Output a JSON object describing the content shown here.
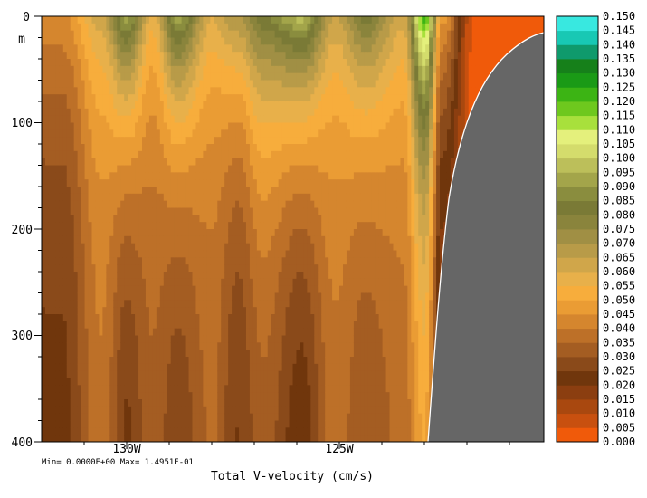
{
  "chart_data": {
    "type": "heatmap",
    "title": "Total V-velocity (cm/s)",
    "stats": "Min= 0.0000E+00  Max= 1.4951E-01",
    "ylabel_unit": "m",
    "yticks": [
      "0",
      "100",
      "200",
      "300",
      "400"
    ],
    "ylim": [
      0,
      400
    ],
    "y_inverted": true,
    "xticks": [
      "130W",
      "125W"
    ],
    "xtick_positions_deg_w": [
      130,
      125
    ],
    "xlim_deg_w": [
      132.1,
      120.3
    ],
    "colorbar": {
      "min": 0.0,
      "max": 0.15,
      "step": 0.005,
      "labels": [
        "0.000",
        "0.005",
        "0.010",
        "0.015",
        "0.020",
        "0.025",
        "0.030",
        "0.035",
        "0.040",
        "0.045",
        "0.050",
        "0.055",
        "0.060",
        "0.065",
        "0.070",
        "0.075",
        "0.080",
        "0.085",
        "0.090",
        "0.095",
        "0.100",
        "0.105",
        "0.110",
        "0.115",
        "0.120",
        "0.125",
        "0.130",
        "0.135",
        "0.140",
        "0.145",
        "0.150"
      ],
      "colors": [
        "#f05a0a",
        "#c8500f",
        "#a9480f",
        "#8b3e10",
        "#70360c",
        "#8a4a1a",
        "#a45d22",
        "#bd7028",
        "#d5862e",
        "#ea9c34",
        "#f7ad3c",
        "#e8b04a",
        "#d0a64a",
        "#b89b48",
        "#a08f44",
        "#8a843c",
        "#7a7a36",
        "#8a8d3e",
        "#a3a54a",
        "#bcbf5a",
        "#d4dc6c",
        "#e4f07c",
        "#a8e03c",
        "#6ec81e",
        "#3cb414",
        "#1a9a16",
        "#16801a",
        "#0f9a6c",
        "#18c8b4",
        "#38e8e0",
        "#48c8e8"
      ],
      "high_colors": [
        "#48c8e8",
        "#3ca0d8",
        "#2e78c0",
        "#2a50a8",
        "#2e3898",
        "#5a3090",
        "#7a3ca8",
        "#a048b8",
        "#c860c8",
        "#e880d8",
        "#f890c0"
      ]
    },
    "land_color": "#666666",
    "profile_columns": [
      {
        "lon": 131.6,
        "shallow": 0.042,
        "deep": 0.02
      },
      {
        "lon": 130.7,
        "shallow": 0.06,
        "deep": 0.035
      },
      {
        "lon": 130.1,
        "shallow": 0.09,
        "deep": 0.018
      },
      {
        "lon": 129.5,
        "shallow": 0.055,
        "deep": 0.03
      },
      {
        "lon": 128.9,
        "shallow": 0.09,
        "deep": 0.02
      },
      {
        "lon": 128.1,
        "shallow": 0.058,
        "deep": 0.032
      },
      {
        "lon": 127.5,
        "shallow": 0.068,
        "deep": 0.02
      },
      {
        "lon": 126.9,
        "shallow": 0.082,
        "deep": 0.028
      },
      {
        "lon": 126.0,
        "shallow": 0.095,
        "deep": 0.015
      },
      {
        "lon": 125.2,
        "shallow": 0.062,
        "deep": 0.034
      },
      {
        "lon": 124.5,
        "shallow": 0.08,
        "deep": 0.025
      },
      {
        "lon": 123.6,
        "shallow": 0.06,
        "deep": 0.033
      },
      {
        "lon": 123.1,
        "shallow": 0.12,
        "deep": 0.045
      },
      {
        "lon": 122.7,
        "shallow": 0.045,
        "deep": 0.01
      },
      {
        "lon": 121.9,
        "shallow": 0.0,
        "deep": 0.0
      }
    ]
  }
}
